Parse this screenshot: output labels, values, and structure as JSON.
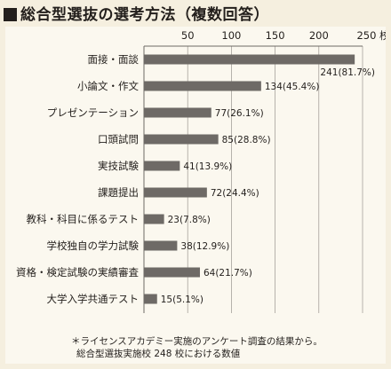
{
  "title": "総合型選抜の選考方法（複数回答）",
  "chart_data": {
    "type": "bar",
    "orientation": "horizontal",
    "title": "総合型選抜の選考方法（複数回答）",
    "unit": "校",
    "xlim": [
      0,
      250
    ],
    "ticks": [
      50,
      100,
      150,
      200,
      250
    ],
    "tick_labels": [
      "50",
      "100",
      "150",
      "200",
      "250 校"
    ],
    "grid": true,
    "bar_color": "#6e6a66",
    "categories": [
      "面接・面談",
      "小論文・作文",
      "プレゼンテーション",
      "口頭試問",
      "実技試験",
      "課題提出",
      "教科・科目に係るテスト",
      "学校独自の学力試験",
      "資格・検定試験の実績審査",
      "大学入学共通テスト"
    ],
    "values": [
      241,
      134,
      77,
      85,
      41,
      72,
      23,
      38,
      64,
      15
    ],
    "percents": [
      "81.7%",
      "45.4%",
      "26.1%",
      "28.8%",
      "13.9%",
      "24.4%",
      "7.8%",
      "12.9%",
      "21.7%",
      "5.1%"
    ],
    "value_labels": [
      "241(81.7%)",
      "134(45.4%)",
      "77(26.1%)",
      "85(28.8%)",
      "41(13.9%)",
      "72(24.4%)",
      "23(7.8%)",
      "38(12.9%)",
      "64(21.7%)",
      "15(5.1%)"
    ]
  },
  "note": {
    "line1": "＊ライセンスアカデミー実施のアンケート調査の結果から。",
    "line2": "総合型選抜実施校 248 校における数値"
  }
}
